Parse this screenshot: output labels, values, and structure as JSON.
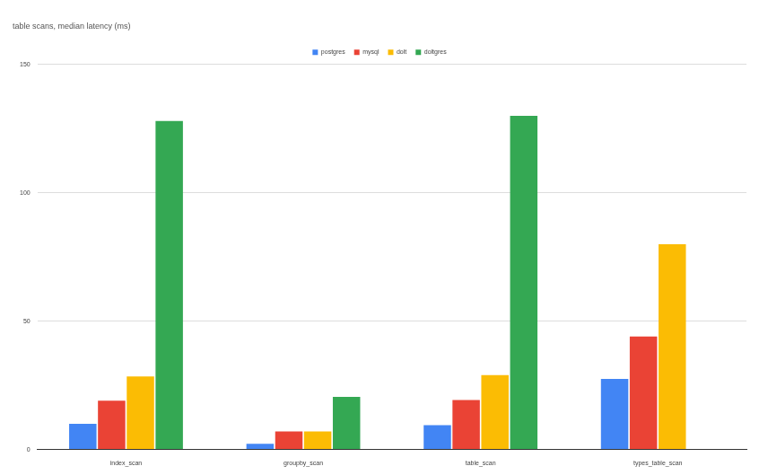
{
  "chart_data": {
    "type": "bar",
    "title": "table scans, median latency (ms)",
    "categories": [
      "index_scan",
      "groupby_scan",
      "table_scan",
      "types_table_scan"
    ],
    "series": [
      {
        "name": "postgres",
        "color": "#4285f4",
        "values": [
          10,
          2.2,
          9.5,
          27.5
        ]
      },
      {
        "name": "mysql",
        "color": "#ea4335",
        "values": [
          19,
          7,
          19.3,
          44
        ]
      },
      {
        "name": "dolt",
        "color": "#fbbc04",
        "values": [
          28.5,
          7,
          29,
          80
        ]
      },
      {
        "name": "doltgres",
        "color": "#34a853",
        "values": [
          128,
          20.5,
          130,
          null
        ]
      }
    ],
    "ylim": [
      0,
      150
    ],
    "yticks": [
      0,
      50,
      100,
      150
    ],
    "grid": true,
    "legend": "top"
  }
}
